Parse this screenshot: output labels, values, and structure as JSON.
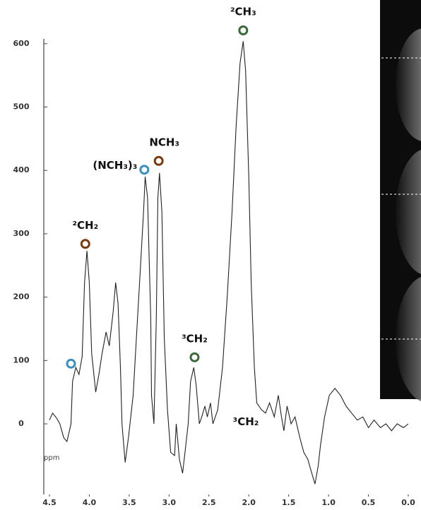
{
  "chart_data": {
    "type": "line",
    "color": "#222222",
    "x": [
      4.5,
      4.46,
      4.41,
      4.37,
      4.32,
      4.28,
      4.23,
      4.21,
      4.17,
      4.13,
      4.09,
      4.06,
      4.03,
      4.0,
      3.97,
      3.92,
      3.88,
      3.84,
      3.79,
      3.75,
      3.7,
      3.67,
      3.64,
      3.61,
      3.59,
      3.55,
      3.51,
      3.45,
      3.41,
      3.37,
      3.32,
      3.3,
      3.27,
      3.23,
      3.22,
      3.19,
      3.16,
      3.14,
      3.12,
      3.09,
      3.06,
      3.02,
      2.98,
      2.93,
      2.91,
      2.87,
      2.83,
      2.8,
      2.76,
      2.73,
      2.69,
      2.66,
      2.62,
      2.59,
      2.55,
      2.52,
      2.48,
      2.45,
      2.39,
      2.33,
      2.27,
      2.21,
      2.16,
      2.11,
      2.07,
      2.04,
      2.0,
      1.97,
      1.93,
      1.9,
      1.84,
      1.79,
      1.74,
      1.68,
      1.63,
      1.59,
      1.56,
      1.52,
      1.47,
      1.42,
      1.36,
      1.31,
      1.26,
      1.21,
      1.17,
      1.13,
      1.1,
      1.05,
      0.99,
      0.92,
      0.85,
      0.78,
      0.71,
      0.64,
      0.57,
      0.5,
      0.43,
      0.35,
      0.28,
      0.21,
      0.14,
      0.06,
      0.0
    ],
    "values": [
      6,
      17,
      9,
      0,
      -22,
      -28,
      0,
      67,
      89,
      78,
      106,
      223,
      273,
      223,
      111,
      50,
      78,
      111,
      145,
      123,
      178,
      223,
      190,
      89,
      0,
      -61,
      -22,
      45,
      134,
      223,
      334,
      390,
      357,
      167,
      45,
      0,
      167,
      357,
      396,
      334,
      134,
      22,
      -45,
      -50,
      0,
      -56,
      -78,
      -45,
      0,
      67,
      89,
      61,
      0,
      11,
      28,
      11,
      33,
      0,
      22,
      89,
      201,
      334,
      468,
      569,
      604,
      557,
      390,
      223,
      89,
      33,
      22,
      17,
      33,
      11,
      45,
      11,
      -11,
      28,
      0,
      11,
      -22,
      -45,
      -56,
      -78,
      -95,
      -67,
      -33,
      11,
      45,
      56,
      45,
      28,
      17,
      6,
      11,
      -6,
      6,
      -6,
      0,
      -11,
      0,
      -6,
      0
    ],
    "xlim": [
      4.5,
      0.0
    ],
    "xticks": [
      4.5,
      {
        "value": 4,
        "label": "4.0"
      },
      3.5,
      {
        "value": 3,
        "label": "3.0"
      },
      2.5,
      {
        "value": 2,
        "label": "2.0"
      },
      1.5,
      {
        "value": 1,
        "label": "1.0"
      },
      0.5,
      {
        "value": 0,
        "label": "0.0"
      }
    ],
    "ylim": [
      -110,
      650
    ],
    "yticks": [
      0,
      100,
      200,
      300,
      400,
      500,
      600
    ],
    "xlabel": "ppm",
    "annotations": [
      {
        "x": 4.23,
        "y": 95,
        "color": "#3a8fc0"
      },
      {
        "x": 4.05,
        "y": 284,
        "color": "#7a3a10",
        "label": "²CH₂"
      },
      {
        "x": 3.31,
        "y": 401,
        "color": "#3a8fc0",
        "label": "(NCH₃)₃"
      },
      {
        "x": 3.13,
        "y": 415,
        "color": "#7a3a10",
        "label": "NCH₃"
      },
      {
        "x": 2.68,
        "y": 105,
        "color": "#3a6a3a",
        "label": "³CH₂"
      },
      {
        "x": 2.07,
        "y": 621,
        "color": "#3a6a3a",
        "label": "²CH₃"
      },
      {
        "x": 2.2,
        "y": 3,
        "label": "³CH₂"
      }
    ]
  }
}
